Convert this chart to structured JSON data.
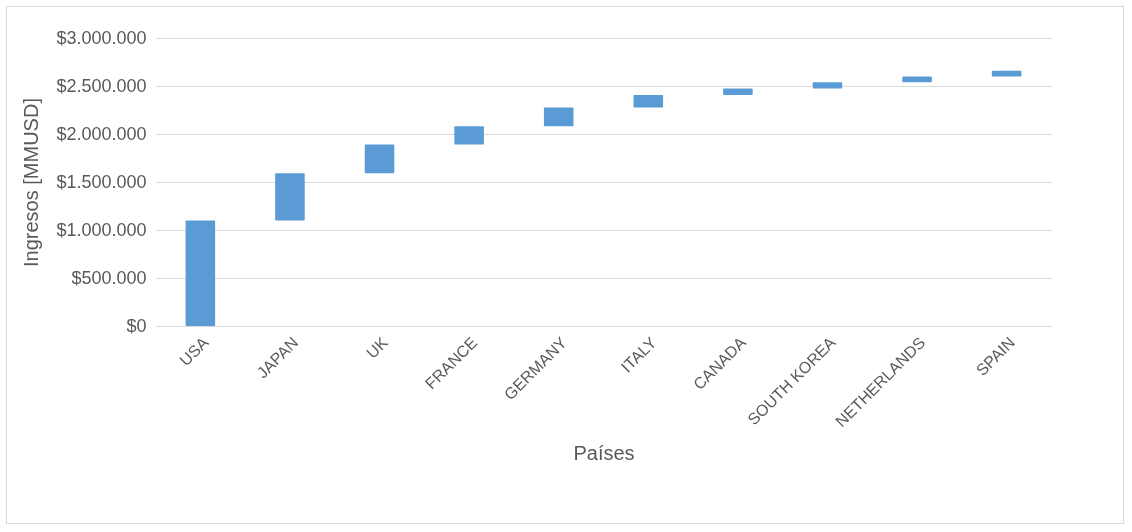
{
  "chart_data": {
    "type": "bar",
    "xlabel": "Países",
    "ylabel": "Ingresos [MMUSD]",
    "categories": [
      "USA",
      "JAPAN",
      "UK",
      "FRANCE",
      "GERMANY",
      "ITALY",
      "CANADA",
      "SOUTH KOREA",
      "NETHERLANDS",
      "SPAIN"
    ],
    "values": [
      1100000,
      490000,
      300000,
      190000,
      195000,
      130000,
      70000,
      65000,
      60000,
      60000
    ],
    "base": [
      0,
      1100000,
      1590000,
      1890000,
      2080000,
      2275000,
      2405000,
      2475000,
      2540000,
      2600000
    ],
    "color": "#5b9bd5",
    "ylim": [
      0,
      3000000
    ],
    "yticks": [
      {
        "value": 0,
        "label": "$0"
      },
      {
        "value": 500000,
        "label": "$500.000"
      },
      {
        "value": 1000000,
        "label": "$1.000.000"
      },
      {
        "value": 1500000,
        "label": "$1.500.000"
      },
      {
        "value": 2000000,
        "label": "$2.000.000"
      },
      {
        "value": 2500000,
        "label": "$2.500.000"
      },
      {
        "value": 3000000,
        "label": "$3.000.000"
      }
    ],
    "grid": "y"
  }
}
